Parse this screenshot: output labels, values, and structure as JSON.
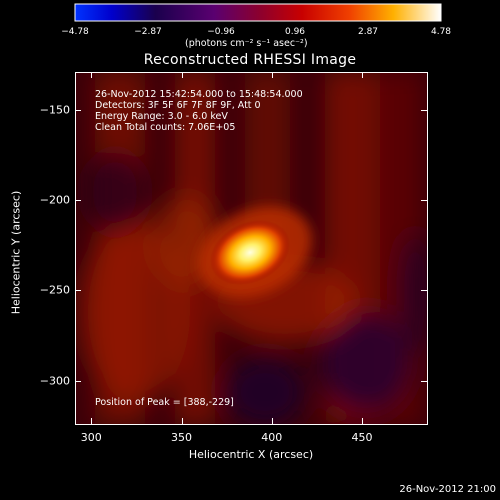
{
  "colorbar": {
    "ticks": [
      "−4.78",
      "−2.87",
      "−0.96",
      "0.96",
      "2.87",
      "4.78"
    ],
    "units_text": "(photons cm⁻² s⁻¹ asec⁻²)",
    "range": [
      -4.78,
      4.78
    ]
  },
  "chart_data": {
    "type": "heatmap",
    "title": "Reconstructed RHESSI Image",
    "xlabel": "Heliocentric X (arcsec)",
    "ylabel": "Heliocentric Y (arcsec)",
    "xlim": [
      291,
      486
    ],
    "ylim": [
      -324,
      -129
    ],
    "x_ticks": [
      "300",
      "350",
      "400",
      "450"
    ],
    "y_ticks": [
      "−150",
      "−200",
      "−250",
      "−300"
    ],
    "x_tick_values": [
      300,
      350,
      400,
      450
    ],
    "y_tick_values": [
      -150,
      -200,
      -250,
      -300
    ],
    "info_lines": [
      "26-Nov-2012 15:42:54.000 to 15:48:54.000",
      "Detectors: 3F 5F 6F 7F 8F 9F, Att 0",
      "Energy Range: 3.0 - 6.0 keV",
      "Clean     Total counts: 7.06E+05"
    ],
    "peak_text": "Position of Peak = [388,-229]",
    "peak": [
      388,
      -229
    ],
    "peak_value": 4.78
  },
  "footer": {
    "timestamp": "26-Nov-2012 21:00"
  }
}
